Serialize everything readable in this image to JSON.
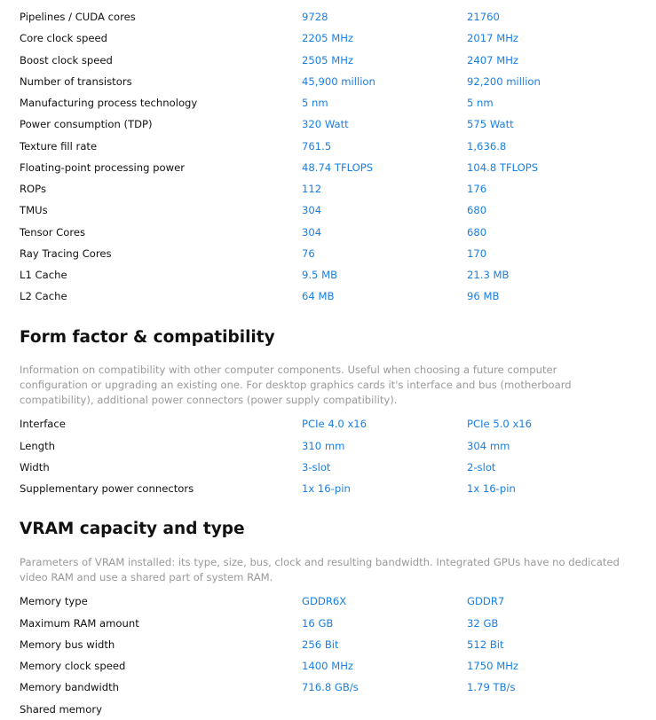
{
  "sections": [
    {
      "title": "",
      "description": "",
      "rows": [
        {
          "label": "Pipelines / CUDA cores",
          "a": "9728",
          "b": "21760"
        },
        {
          "label": "Core clock speed",
          "a": "2205 MHz",
          "b": "2017 MHz"
        },
        {
          "label": "Boost clock speed",
          "a": "2505 MHz",
          "b": "2407 MHz"
        },
        {
          "label": "Number of transistors",
          "a": "45,900 million",
          "b": "92,200 million"
        },
        {
          "label": "Manufacturing process technology",
          "a": "5 nm",
          "b": "5 nm"
        },
        {
          "label": "Power consumption (TDP)",
          "a": "320 Watt",
          "b": "575 Watt"
        },
        {
          "label": "Texture fill rate",
          "a": "761.5",
          "b": "1,636.8"
        },
        {
          "label": "Floating-point processing power",
          "a": "48.74 TFLOPS",
          "b": "104.8 TFLOPS"
        },
        {
          "label": "ROPs",
          "a": "112",
          "b": "176"
        },
        {
          "label": "TMUs",
          "a": "304",
          "b": "680"
        },
        {
          "label": "Tensor Cores",
          "a": "304",
          "b": "680"
        },
        {
          "label": "Ray Tracing Cores",
          "a": "76",
          "b": "170"
        },
        {
          "label": "L1 Cache",
          "a": "9.5 MB",
          "b": "21.3 MB"
        },
        {
          "label": "L2 Cache",
          "a": "64 MB",
          "b": "96 MB"
        }
      ]
    },
    {
      "title": "Form factor & compatibility",
      "description": "Information on compatibility with other computer components. Useful when choosing a future computer configuration or upgrading an existing one. For desktop graphics cards it's interface and bus (motherboard compatibility), additional power connectors (power supply compatibility).",
      "rows": [
        {
          "label": "Interface",
          "a": "PCIe 4.0 x16",
          "b": "PCIe 5.0 x16"
        },
        {
          "label": "Length",
          "a": "310 mm",
          "b": "304 mm"
        },
        {
          "label": "Width",
          "a": "3-slot",
          "b": "2-slot"
        },
        {
          "label": "Supplementary power connectors",
          "a": "1x 16-pin",
          "b": "1x 16-pin"
        }
      ]
    },
    {
      "title": "VRAM capacity and type",
      "description": "Parameters of VRAM installed: its type, size, bus, clock and resulting bandwidth. Integrated GPUs have no dedicated video RAM and use a shared part of system RAM.",
      "rows": [
        {
          "label": "Memory type",
          "a": "GDDR6X",
          "b": "GDDR7"
        },
        {
          "label": "Maximum RAM amount",
          "a": "16 GB",
          "b": "32 GB"
        },
        {
          "label": "Memory bus width",
          "a": "256 Bit",
          "b": "512 Bit"
        },
        {
          "label": "Memory clock speed",
          "a": "1400 MHz",
          "b": "1750 MHz"
        },
        {
          "label": "Memory bandwidth",
          "a": "716.8 GB/s",
          "b": "1.79 TB/s"
        },
        {
          "label": "Shared memory",
          "a": "",
          "b": ""
        }
      ]
    }
  ]
}
